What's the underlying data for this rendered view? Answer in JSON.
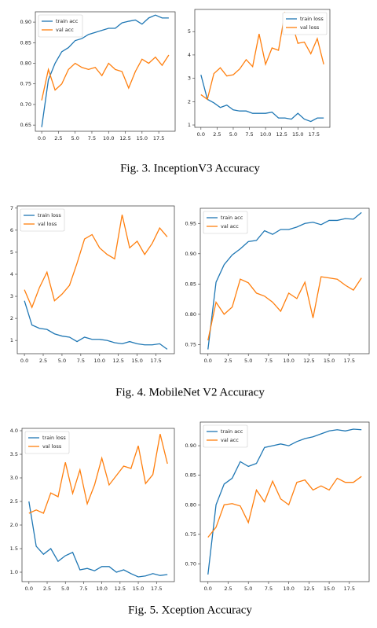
{
  "chart_data": [
    {
      "type": "line",
      "legend": "upper left",
      "xlim": [
        -0.95,
        19.95
      ],
      "ylim": [
        0.635,
        0.925
      ],
      "x": [
        0,
        1,
        2,
        3,
        4,
        5,
        6,
        7,
        8,
        9,
        10,
        11,
        12,
        13,
        14,
        15,
        16,
        17,
        18,
        19
      ],
      "xticks": [
        {
          "value": 0,
          "label": "0.0"
        },
        {
          "value": 2.5,
          "label": "2.5"
        },
        {
          "value": 5,
          "label": "5.0"
        },
        {
          "value": 7.5,
          "label": "7.5"
        },
        {
          "value": 10,
          "label": "10.0"
        },
        {
          "value": 12.5,
          "label": "12.5"
        },
        {
          "value": 15,
          "label": "15.0"
        },
        {
          "value": 17.5,
          "label": "17.5"
        }
      ],
      "yticks": [
        {
          "value": 0.65,
          "label": "0.65"
        },
        {
          "value": 0.7,
          "label": "0.70"
        },
        {
          "value": 0.75,
          "label": "0.75"
        },
        {
          "value": 0.8,
          "label": "0.80"
        },
        {
          "value": 0.85,
          "label": "0.85"
        },
        {
          "value": 0.9,
          "label": "0.90"
        }
      ],
      "series": [
        {
          "name": "train acc",
          "color": "#1f77b4",
          "values": [
            0.645,
            0.76,
            0.8,
            0.828,
            0.838,
            0.855,
            0.86,
            0.87,
            0.875,
            0.88,
            0.885,
            0.885,
            0.898,
            0.902,
            0.905,
            0.895,
            0.91,
            0.917,
            0.91,
            0.91
          ]
        },
        {
          "name": "val acc",
          "color": "#ff7f0e",
          "values": [
            0.71,
            0.785,
            0.735,
            0.75,
            0.785,
            0.8,
            0.79,
            0.785,
            0.79,
            0.77,
            0.8,
            0.785,
            0.78,
            0.74,
            0.78,
            0.81,
            0.8,
            0.815,
            0.795,
            0.82
          ]
        }
      ]
    },
    {
      "type": "line",
      "legend": "upper right",
      "xlim": [
        -0.95,
        19.95
      ],
      "ylim": [
        0.9,
        5.95
      ],
      "x": [
        0,
        1,
        2,
        3,
        4,
        5,
        6,
        7,
        8,
        9,
        10,
        11,
        12,
        13,
        14,
        15,
        16,
        17,
        18,
        19
      ],
      "xticks": [
        {
          "value": 0,
          "label": "0.0"
        },
        {
          "value": 2.5,
          "label": "2.5"
        },
        {
          "value": 5,
          "label": "5.0"
        },
        {
          "value": 7.5,
          "label": "7.5"
        },
        {
          "value": 10,
          "label": "10.0"
        },
        {
          "value": 12.5,
          "label": "12.5"
        },
        {
          "value": 15,
          "label": "15.0"
        },
        {
          "value": 17.5,
          "label": "17.5"
        }
      ],
      "yticks": [
        1,
        2,
        3,
        4,
        5
      ],
      "series": [
        {
          "name": "train loss",
          "color": "#1f77b4",
          "values": [
            3.15,
            2.1,
            1.95,
            1.75,
            1.85,
            1.65,
            1.6,
            1.6,
            1.5,
            1.5,
            1.5,
            1.55,
            1.3,
            1.3,
            1.25,
            1.5,
            1.25,
            1.15,
            1.3,
            1.3
          ]
        },
        {
          "name": "val loss",
          "color": "#ff7f0e",
          "values": [
            2.3,
            2.1,
            3.2,
            3.45,
            3.1,
            3.15,
            3.4,
            3.8,
            3.5,
            4.9,
            3.6,
            4.3,
            4.2,
            5.8,
            5.45,
            4.5,
            4.55,
            4.05,
            4.7,
            3.6
          ]
        }
      ]
    },
    {
      "type": "line",
      "legend": "upper left",
      "xlim": [
        -0.95,
        19.95
      ],
      "ylim": [
        0.4,
        7.1
      ],
      "x": [
        0,
        1,
        2,
        3,
        4,
        5,
        6,
        7,
        8,
        9,
        10,
        11,
        12,
        13,
        14,
        15,
        16,
        17,
        18,
        19
      ],
      "xticks": [
        {
          "value": 0,
          "label": "0.0"
        },
        {
          "value": 2.5,
          "label": "2.5"
        },
        {
          "value": 5,
          "label": "5.0"
        },
        {
          "value": 7.5,
          "label": "7.5"
        },
        {
          "value": 10,
          "label": "10.0"
        },
        {
          "value": 12.5,
          "label": "12.5"
        },
        {
          "value": 15,
          "label": "15.0"
        },
        {
          "value": 17.5,
          "label": "17.5"
        }
      ],
      "yticks": [
        1,
        2,
        3,
        4,
        5,
        6,
        7
      ],
      "series": [
        {
          "name": "train loss",
          "color": "#1f77b4",
          "values": [
            2.8,
            1.7,
            1.55,
            1.5,
            1.3,
            1.2,
            1.15,
            0.95,
            1.15,
            1.05,
            1.05,
            1.0,
            0.9,
            0.85,
            0.95,
            0.85,
            0.8,
            0.8,
            0.85,
            0.6
          ]
        },
        {
          "name": "val loss",
          "color": "#ff7f0e",
          "values": [
            3.3,
            2.5,
            3.4,
            4.1,
            2.8,
            3.1,
            3.5,
            4.5,
            5.6,
            5.8,
            5.2,
            4.9,
            4.7,
            6.7,
            5.2,
            5.5,
            4.9,
            5.4,
            6.1,
            5.7
          ]
        }
      ]
    },
    {
      "type": "line",
      "legend": "upper left",
      "xlim": [
        -0.95,
        19.95
      ],
      "ylim": [
        0.735,
        0.975
      ],
      "x": [
        0,
        1,
        2,
        3,
        4,
        5,
        6,
        7,
        8,
        9,
        10,
        11,
        12,
        13,
        14,
        15,
        16,
        17,
        18,
        19
      ],
      "xticks": [
        {
          "value": 0,
          "label": "0.0"
        },
        {
          "value": 2.5,
          "label": "2.5"
        },
        {
          "value": 5,
          "label": "5.0"
        },
        {
          "value": 7.5,
          "label": "7.5"
        },
        {
          "value": 10,
          "label": "10.0"
        },
        {
          "value": 12.5,
          "label": "12.5"
        },
        {
          "value": 15,
          "label": "15.0"
        },
        {
          "value": 17.5,
          "label": "17.5"
        }
      ],
      "yticks": [
        {
          "value": 0.75,
          "label": "0.75"
        },
        {
          "value": 0.8,
          "label": "0.80"
        },
        {
          "value": 0.85,
          "label": "0.85"
        },
        {
          "value": 0.9,
          "label": "0.90"
        },
        {
          "value": 0.95,
          "label": "0.95"
        }
      ],
      "series": [
        {
          "name": "train acc",
          "color": "#1f77b4",
          "values": [
            0.742,
            0.853,
            0.882,
            0.898,
            0.908,
            0.92,
            0.922,
            0.938,
            0.932,
            0.94,
            0.94,
            0.944,
            0.95,
            0.952,
            0.948,
            0.955,
            0.955,
            0.958,
            0.957,
            0.968
          ]
        },
        {
          "name": "val acc",
          "color": "#ff7f0e",
          "values": [
            0.757,
            0.82,
            0.8,
            0.812,
            0.858,
            0.852,
            0.835,
            0.83,
            0.82,
            0.805,
            0.835,
            0.826,
            0.853,
            0.794,
            0.862,
            0.86,
            0.858,
            0.848,
            0.84,
            0.86
          ]
        }
      ]
    },
    {
      "type": "line",
      "legend": "upper left",
      "xlim": [
        -0.95,
        19.95
      ],
      "ylim": [
        0.8,
        4.05
      ],
      "x": [
        0,
        1,
        2,
        3,
        4,
        5,
        6,
        7,
        8,
        9,
        10,
        11,
        12,
        13,
        14,
        15,
        16,
        17,
        18,
        19
      ],
      "xticks": [
        {
          "value": 0,
          "label": "0.0"
        },
        {
          "value": 2.5,
          "label": "2.5"
        },
        {
          "value": 5,
          "label": "5.0"
        },
        {
          "value": 7.5,
          "label": "7.5"
        },
        {
          "value": 10,
          "label": "10.0"
        },
        {
          "value": 12.5,
          "label": "12.5"
        },
        {
          "value": 15,
          "label": "15.0"
        },
        {
          "value": 17.5,
          "label": "17.5"
        }
      ],
      "yticks": [
        {
          "value": 1,
          "label": "1.0"
        },
        1.5,
        {
          "value": 2,
          "label": "2.0"
        },
        2.5,
        {
          "value": 3,
          "label": "3.0"
        },
        3.5,
        {
          "value": 4,
          "label": "4.0"
        }
      ],
      "series": [
        {
          "name": "train loss",
          "color": "#1f77b4",
          "values": [
            2.5,
            1.55,
            1.38,
            1.5,
            1.23,
            1.35,
            1.42,
            1.05,
            1.08,
            1.03,
            1.12,
            1.12,
            1.0,
            1.05,
            0.97,
            0.9,
            0.92,
            0.97,
            0.93,
            0.95
          ]
        },
        {
          "name": "val loss",
          "color": "#ff7f0e",
          "values": [
            2.25,
            2.32,
            2.25,
            2.68,
            2.6,
            3.33,
            2.67,
            3.17,
            2.45,
            2.85,
            3.42,
            2.85,
            3.05,
            3.25,
            3.2,
            3.68,
            2.88,
            3.07,
            3.93,
            3.3
          ]
        }
      ]
    },
    {
      "type": "line",
      "legend": "upper left",
      "xlim": [
        -0.95,
        19.95
      ],
      "ylim": [
        0.67,
        0.94
      ],
      "x": [
        0,
        1,
        2,
        3,
        4,
        5,
        6,
        7,
        8,
        9,
        10,
        11,
        12,
        13,
        14,
        15,
        16,
        17,
        18,
        19
      ],
      "xticks": [
        {
          "value": 0,
          "label": "0.0"
        },
        {
          "value": 2.5,
          "label": "2.5"
        },
        {
          "value": 5,
          "label": "5.0"
        },
        {
          "value": 7.5,
          "label": "7.5"
        },
        {
          "value": 10,
          "label": "10.0"
        },
        {
          "value": 12.5,
          "label": "12.5"
        },
        {
          "value": 15,
          "label": "15.0"
        },
        {
          "value": 17.5,
          "label": "17.5"
        }
      ],
      "yticks": [
        {
          "value": 0.7,
          "label": "0.70"
        },
        {
          "value": 0.75,
          "label": "0.75"
        },
        {
          "value": 0.8,
          "label": "0.80"
        },
        {
          "value": 0.85,
          "label": "0.85"
        },
        {
          "value": 0.9,
          "label": "0.90"
        }
      ],
      "series": [
        {
          "name": "train acc",
          "color": "#1f77b4",
          "values": [
            0.682,
            0.8,
            0.835,
            0.845,
            0.873,
            0.865,
            0.87,
            0.897,
            0.9,
            0.903,
            0.9,
            0.907,
            0.912,
            0.915,
            0.92,
            0.925,
            0.927,
            0.925,
            0.928,
            0.927
          ]
        },
        {
          "name": "val acc",
          "color": "#ff7f0e",
          "values": [
            0.745,
            0.762,
            0.8,
            0.802,
            0.798,
            0.77,
            0.825,
            0.805,
            0.84,
            0.81,
            0.8,
            0.838,
            0.842,
            0.825,
            0.832,
            0.825,
            0.845,
            0.838,
            0.838,
            0.848
          ]
        }
      ]
    }
  ],
  "captions": [
    "Fig. 3. InceptionV3 Accuracy",
    "Fig. 4. MobileNet V2 Accuracy",
    "Fig. 5. Xception Accuracy"
  ]
}
